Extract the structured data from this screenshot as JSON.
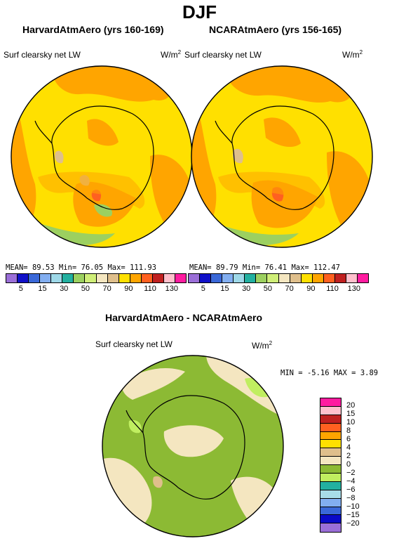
{
  "season": "DJF",
  "panels": [
    {
      "title": "HarvardAtmAero (yrs 160-169)",
      "variable": "Surf clearsky net LW",
      "unit": "W/m",
      "unit_exp": "2",
      "mean_label": "MEAN=",
      "mean": "89.53",
      "min_label": "Min=",
      "min": "76.05",
      "max_label": "Max=",
      "max": "111.93"
    },
    {
      "title": "NCARAtmAero (yrs 156-165)",
      "variable": "Surf clearsky net LW",
      "unit": "W/m",
      "unit_exp": "2",
      "mean_label": "MEAN=",
      "mean": "89.79",
      "min_label": "Min=",
      "min": "76.41",
      "max_label": "Max=",
      "max": "112.47"
    }
  ],
  "top_colorbar": {
    "colors": [
      "#9b6fd8",
      "#1010c8",
      "#3a68d8",
      "#82aef0",
      "#9ed8e8",
      "#22b0a0",
      "#9cd060",
      "#cfee78",
      "#f4e6c0",
      "#dfbf8c",
      "#ffe000",
      "#ffa500",
      "#ff6020",
      "#c02020",
      "#ffc0cc",
      "#ff1ca0"
    ],
    "labels": [
      "5",
      "15",
      "30",
      "50",
      "70",
      "90",
      "110",
      "130"
    ]
  },
  "diff_panel": {
    "title": "HarvardAtmAero - NCARAtmAero",
    "variable": "Surf clearsky net LW",
    "unit": "W/m",
    "unit_exp": "2",
    "min_label": "MIN =",
    "min": "-5.16",
    "max_label": "MAX =",
    "max": "3.89"
  },
  "diff_colorbar": {
    "colors": [
      "#ff1ca0",
      "#ffc0cc",
      "#c02020",
      "#ff6020",
      "#ffa500",
      "#ffe000",
      "#dfbf8c",
      "#f4e6c0",
      "#8cba34",
      "#c0ee60",
      "#22b0a0",
      "#a8dce8",
      "#82aef0",
      "#3a68d8",
      "#0a0ac8",
      "#9b6fd8"
    ],
    "labels": [
      "20",
      "15",
      "10",
      "8",
      "6",
      "4",
      "2",
      "0",
      "−2",
      "−4",
      "−6",
      "−8",
      "−10",
      "−15",
      "−20"
    ]
  }
}
